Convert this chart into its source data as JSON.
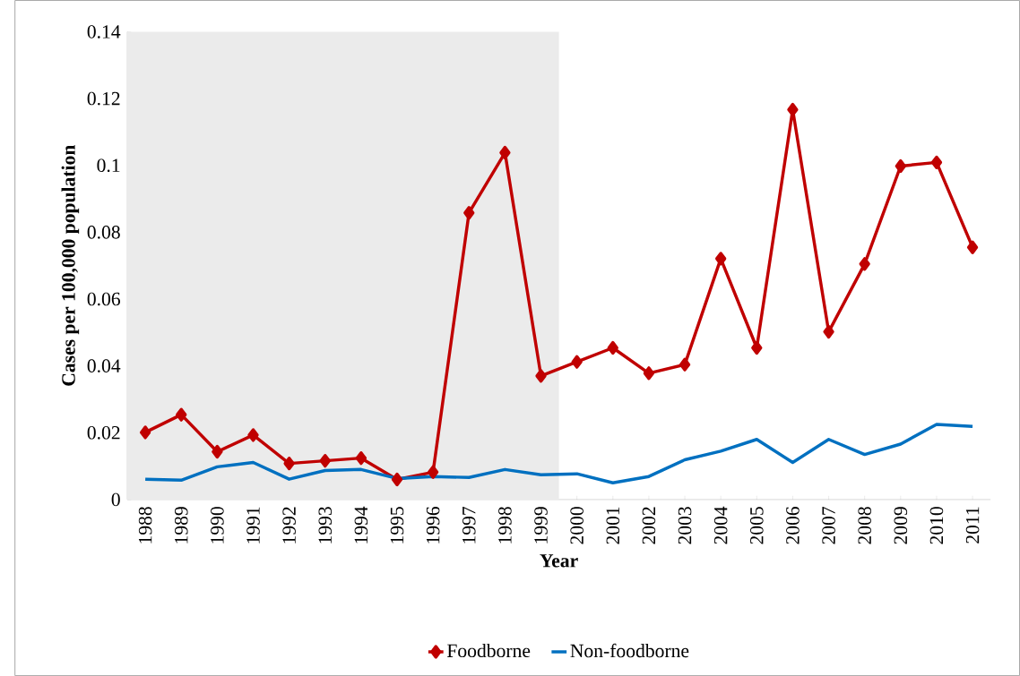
{
  "chart_data": {
    "type": "line",
    "xlabel": "Year",
    "ylabel": "Cases per 100,000 population",
    "categories": [
      "1988",
      "1989",
      "1990",
      "1991",
      "1992",
      "1993",
      "1994",
      "1995",
      "1996",
      "1997",
      "1998",
      "1999",
      "2000",
      "2001",
      "2002",
      "2003",
      "2004",
      "2005",
      "2006",
      "2007",
      "2008",
      "2009",
      "2010",
      "2011"
    ],
    "series": [
      {
        "name": "Foodborne",
        "color": "#c00000",
        "marker": "diamond",
        "values": [
          0.0201,
          0.0254,
          0.0143,
          0.0193,
          0.0108,
          0.0116,
          0.0124,
          0.006,
          0.0082,
          0.0858,
          0.1038,
          0.037,
          0.0412,
          0.0454,
          0.0378,
          0.0404,
          0.0721,
          0.0454,
          0.1167,
          0.0502,
          0.0705,
          0.0998,
          0.1009,
          0.0755
        ]
      },
      {
        "name": "Non-foodborne",
        "color": "#0070c0",
        "marker": "none",
        "values": [
          0.0061,
          0.0058,
          0.0098,
          0.0111,
          0.0061,
          0.0087,
          0.009,
          0.0063,
          0.0069,
          0.0066,
          0.009,
          0.0074,
          0.0077,
          0.005,
          0.0069,
          0.0119,
          0.0145,
          0.018,
          0.0111,
          0.018,
          0.0135,
          0.0166,
          0.0225,
          0.0219
        ]
      }
    ],
    "ylim": [
      0,
      0.14
    ],
    "yticks": [
      0,
      0.02,
      0.04,
      0.06,
      0.08,
      0.1,
      0.12,
      0.14
    ],
    "bands": [
      {
        "axis": "x",
        "from": "1988",
        "to": "1999",
        "color": "#ebebeb"
      }
    ],
    "grid": false,
    "legend": "bottom",
    "line_style": "solid"
  }
}
